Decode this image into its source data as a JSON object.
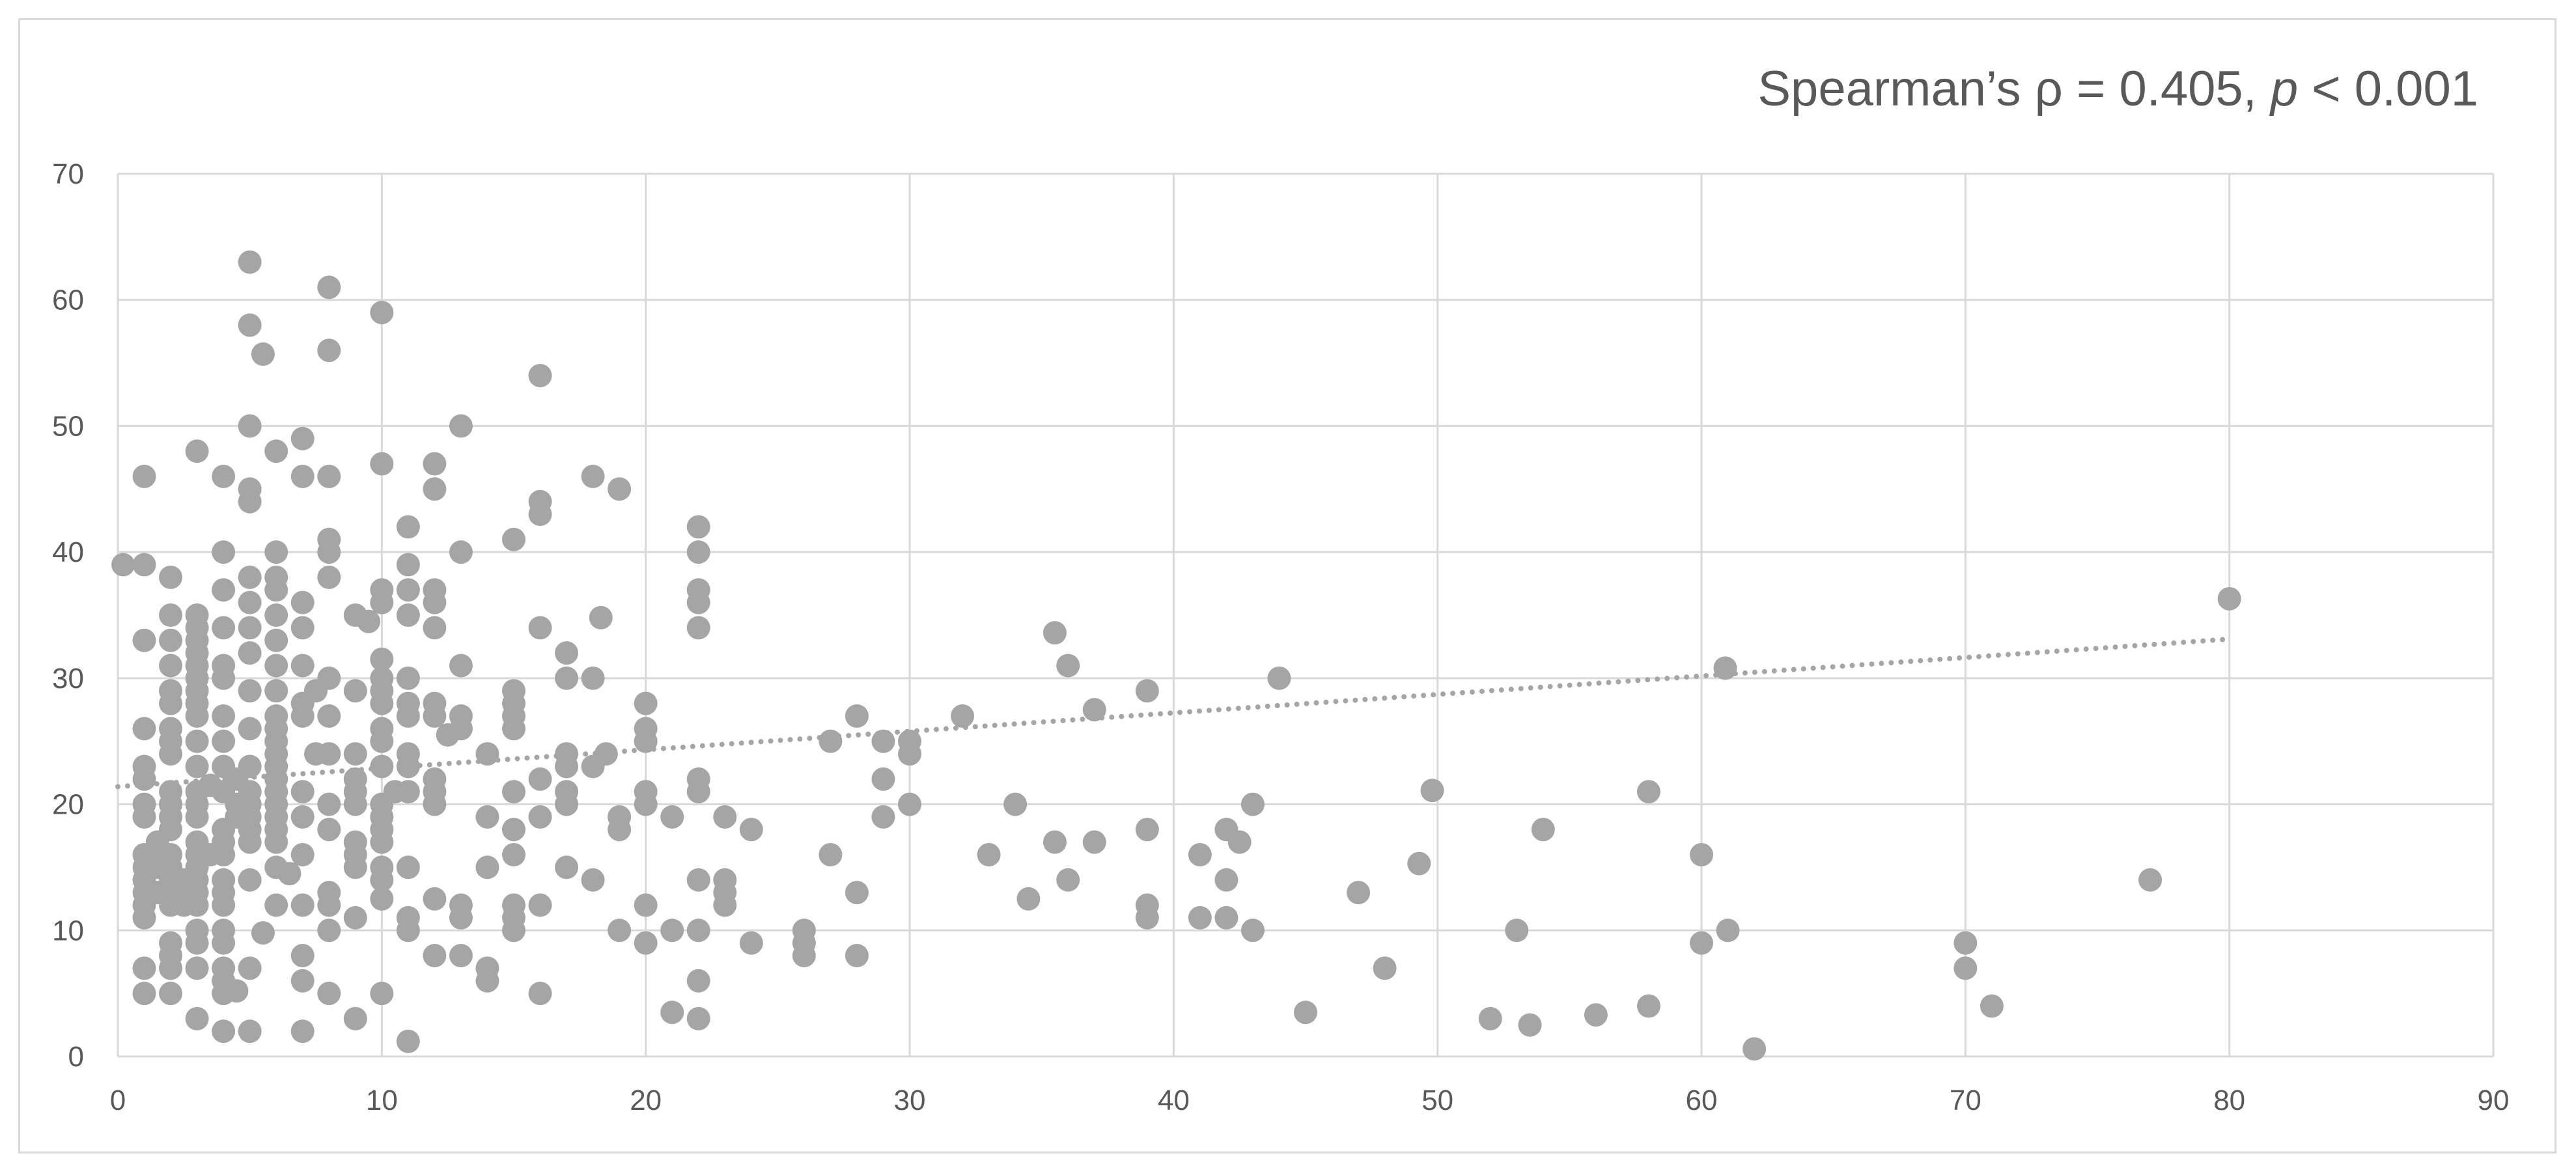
{
  "chart_data": {
    "type": "scatter",
    "title": "",
    "xlabel": "",
    "ylabel": "",
    "xlim": [
      0,
      90
    ],
    "ylim": [
      0,
      70
    ],
    "x_ticks": [
      0,
      10,
      20,
      30,
      40,
      50,
      60,
      70,
      80,
      90
    ],
    "y_ticks": [
      0,
      10,
      20,
      30,
      40,
      50,
      60,
      70
    ],
    "grid": true,
    "legend": "none",
    "annotation": {
      "prefix": "Spearman’s ρ = 0.405, ",
      "italic": "p",
      "suffix": " < 0.001"
    },
    "trendline": {
      "type": "linear",
      "style": "dotted",
      "x_start": 0,
      "y_start": 21.4,
      "x_end": 80,
      "y_end": 33.1
    },
    "colors": {
      "marker": "#a5a5a5",
      "trendline": "#a5a5a5",
      "grid": "#d9d9d9",
      "text": "#595959"
    },
    "points": [
      [
        0.2,
        39
      ],
      [
        1,
        39
      ],
      [
        1,
        46
      ],
      [
        1,
        33
      ],
      [
        1,
        26
      ],
      [
        1,
        23
      ],
      [
        1,
        22
      ],
      [
        1,
        20
      ],
      [
        1,
        19
      ],
      [
        1,
        16
      ],
      [
        1,
        15
      ],
      [
        1,
        14
      ],
      [
        1,
        13
      ],
      [
        1,
        12
      ],
      [
        1,
        11
      ],
      [
        1,
        7
      ],
      [
        1,
        5
      ],
      [
        1.5,
        17
      ],
      [
        1.5,
        16
      ],
      [
        1.5,
        15
      ],
      [
        1.5,
        13
      ],
      [
        2,
        38
      ],
      [
        2,
        35
      ],
      [
        2,
        33
      ],
      [
        2,
        31
      ],
      [
        2,
        29
      ],
      [
        2,
        28
      ],
      [
        2,
        26
      ],
      [
        2,
        25
      ],
      [
        2,
        24
      ],
      [
        2,
        21
      ],
      [
        2,
        20
      ],
      [
        2,
        19
      ],
      [
        2,
        18
      ],
      [
        2,
        16
      ],
      [
        2,
        15
      ],
      [
        2,
        14
      ],
      [
        2,
        13
      ],
      [
        2,
        12
      ],
      [
        2,
        9
      ],
      [
        2,
        8
      ],
      [
        2,
        7
      ],
      [
        2,
        5
      ],
      [
        2.5,
        14
      ],
      [
        2.5,
        13
      ],
      [
        2.5,
        12
      ],
      [
        3,
        48
      ],
      [
        3,
        35
      ],
      [
        3,
        34
      ],
      [
        3,
        33
      ],
      [
        3,
        32
      ],
      [
        3,
        31
      ],
      [
        3,
        30
      ],
      [
        3,
        29
      ],
      [
        3,
        28
      ],
      [
        3,
        27
      ],
      [
        3,
        25
      ],
      [
        3,
        23
      ],
      [
        3,
        21
      ],
      [
        3,
        20
      ],
      [
        3,
        19
      ],
      [
        3,
        17
      ],
      [
        3,
        16
      ],
      [
        3,
        15
      ],
      [
        3,
        14
      ],
      [
        3,
        13
      ],
      [
        3,
        12
      ],
      [
        3,
        10
      ],
      [
        3,
        9
      ],
      [
        3,
        7
      ],
      [
        3,
        3
      ],
      [
        3.5,
        21.5
      ],
      [
        3.5,
        16
      ],
      [
        4,
        46
      ],
      [
        4,
        40
      ],
      [
        4,
        37
      ],
      [
        4,
        34
      ],
      [
        4,
        31
      ],
      [
        4,
        30
      ],
      [
        4,
        27
      ],
      [
        4,
        25
      ],
      [
        4,
        23
      ],
      [
        4,
        21
      ],
      [
        4,
        18
      ],
      [
        4,
        17
      ],
      [
        4,
        16
      ],
      [
        4,
        14
      ],
      [
        4,
        13
      ],
      [
        4,
        12
      ],
      [
        4,
        10
      ],
      [
        4,
        9
      ],
      [
        4,
        7
      ],
      [
        4,
        6
      ],
      [
        4,
        5
      ],
      [
        4,
        2
      ],
      [
        4.5,
        22
      ],
      [
        4.5,
        20
      ],
      [
        4.5,
        19
      ],
      [
        4.5,
        5.2
      ],
      [
        5,
        63
      ],
      [
        5,
        58
      ],
      [
        5,
        50
      ],
      [
        5,
        45
      ],
      [
        5,
        44
      ],
      [
        5,
        38
      ],
      [
        5,
        36
      ],
      [
        5,
        34
      ],
      [
        5,
        32
      ],
      [
        5,
        29
      ],
      [
        5,
        26
      ],
      [
        5,
        23
      ],
      [
        5,
        21
      ],
      [
        5,
        20
      ],
      [
        5,
        19
      ],
      [
        5,
        18
      ],
      [
        5,
        17
      ],
      [
        5,
        14
      ],
      [
        5,
        7
      ],
      [
        5,
        2
      ],
      [
        5.5,
        55.7
      ],
      [
        5.5,
        9.8
      ],
      [
        6,
        48
      ],
      [
        6,
        40
      ],
      [
        6,
        38
      ],
      [
        6,
        37
      ],
      [
        6,
        35
      ],
      [
        6,
        33
      ],
      [
        6,
        31
      ],
      [
        6,
        29
      ],
      [
        6,
        27
      ],
      [
        6,
        26
      ],
      [
        6,
        25
      ],
      [
        6,
        24
      ],
      [
        6,
        23
      ],
      [
        6,
        22
      ],
      [
        6,
        21
      ],
      [
        6,
        20
      ],
      [
        6,
        19
      ],
      [
        6,
        18
      ],
      [
        6,
        17
      ],
      [
        6,
        15
      ],
      [
        6,
        12
      ],
      [
        6.5,
        14.5
      ],
      [
        7,
        49
      ],
      [
        7,
        46
      ],
      [
        7,
        36
      ],
      [
        7,
        34
      ],
      [
        7,
        31
      ],
      [
        7,
        28
      ],
      [
        7,
        27
      ],
      [
        7,
        21
      ],
      [
        7,
        19
      ],
      [
        7,
        16
      ],
      [
        7,
        12
      ],
      [
        7,
        8
      ],
      [
        7,
        6
      ],
      [
        7,
        2
      ],
      [
        7.5,
        29
      ],
      [
        7.5,
        24
      ],
      [
        8,
        61
      ],
      [
        8,
        56
      ],
      [
        8,
        46
      ],
      [
        8,
        41
      ],
      [
        8,
        40
      ],
      [
        8,
        38
      ],
      [
        8,
        30
      ],
      [
        8,
        27
      ],
      [
        8,
        24
      ],
      [
        8,
        20
      ],
      [
        8,
        18
      ],
      [
        8,
        13
      ],
      [
        8,
        12
      ],
      [
        8,
        10
      ],
      [
        8,
        5
      ],
      [
        9,
        35
      ],
      [
        9,
        29
      ],
      [
        9,
        24
      ],
      [
        9,
        22
      ],
      [
        9,
        21
      ],
      [
        9,
        20
      ],
      [
        9,
        17
      ],
      [
        9,
        16
      ],
      [
        9,
        15
      ],
      [
        9,
        11
      ],
      [
        9,
        3
      ],
      [
        9.5,
        34.5
      ],
      [
        10,
        59
      ],
      [
        10,
        47
      ],
      [
        10,
        37
      ],
      [
        10,
        36
      ],
      [
        10,
        31.5
      ],
      [
        10,
        30
      ],
      [
        10,
        29
      ],
      [
        10,
        28
      ],
      [
        10,
        26
      ],
      [
        10,
        25
      ],
      [
        10,
        23
      ],
      [
        10,
        20
      ],
      [
        10,
        19
      ],
      [
        10,
        18
      ],
      [
        10,
        17
      ],
      [
        10,
        15
      ],
      [
        10,
        14
      ],
      [
        10,
        12.5
      ],
      [
        10,
        5
      ],
      [
        10.5,
        21
      ],
      [
        11,
        42
      ],
      [
        11,
        39
      ],
      [
        11,
        37
      ],
      [
        11,
        35
      ],
      [
        11,
        30
      ],
      [
        11,
        28
      ],
      [
        11,
        27
      ],
      [
        11,
        24
      ],
      [
        11,
        23
      ],
      [
        11,
        21
      ],
      [
        11,
        15
      ],
      [
        11,
        11
      ],
      [
        11,
        10
      ],
      [
        11,
        1.2
      ],
      [
        12,
        47
      ],
      [
        12,
        45
      ],
      [
        12,
        37
      ],
      [
        12,
        36
      ],
      [
        12,
        34
      ],
      [
        12,
        28
      ],
      [
        12,
        27
      ],
      [
        12,
        22
      ],
      [
        12,
        21
      ],
      [
        12,
        20
      ],
      [
        12,
        12.5
      ],
      [
        12,
        8
      ],
      [
        12.5,
        25.5
      ],
      [
        13,
        50
      ],
      [
        13,
        40
      ],
      [
        13,
        31
      ],
      [
        13,
        27
      ],
      [
        13,
        26
      ],
      [
        13,
        12
      ],
      [
        13,
        11
      ],
      [
        13,
        8
      ],
      [
        14,
        24
      ],
      [
        14,
        19
      ],
      [
        14,
        15
      ],
      [
        14,
        7
      ],
      [
        14,
        6
      ],
      [
        15,
        41
      ],
      [
        15,
        29
      ],
      [
        15,
        28
      ],
      [
        15,
        27
      ],
      [
        15,
        26
      ],
      [
        15,
        21
      ],
      [
        15,
        18
      ],
      [
        15,
        16
      ],
      [
        15,
        12
      ],
      [
        15,
        11
      ],
      [
        15,
        10
      ],
      [
        16,
        54
      ],
      [
        16,
        44
      ],
      [
        16,
        43
      ],
      [
        16,
        34
      ],
      [
        16,
        22
      ],
      [
        16,
        19
      ],
      [
        16,
        12
      ],
      [
        16,
        5
      ],
      [
        17,
        32
      ],
      [
        17,
        30
      ],
      [
        17,
        24
      ],
      [
        17,
        23
      ],
      [
        17,
        21
      ],
      [
        17,
        20
      ],
      [
        17,
        15
      ],
      [
        18,
        46
      ],
      [
        18,
        30
      ],
      [
        18,
        23
      ],
      [
        18,
        14
      ],
      [
        18.3,
        34.8
      ],
      [
        18.5,
        24
      ],
      [
        19,
        45
      ],
      [
        19,
        19
      ],
      [
        19,
        18
      ],
      [
        19,
        10
      ],
      [
        20,
        28
      ],
      [
        20,
        26
      ],
      [
        20,
        25
      ],
      [
        20,
        21
      ],
      [
        20,
        20
      ],
      [
        20,
        12
      ],
      [
        20,
        9
      ],
      [
        21,
        19
      ],
      [
        21,
        10
      ],
      [
        21,
        3.5
      ],
      [
        22,
        42
      ],
      [
        22,
        40
      ],
      [
        22,
        37
      ],
      [
        22,
        36
      ],
      [
        22,
        34
      ],
      [
        22,
        22
      ],
      [
        22,
        21
      ],
      [
        22,
        14
      ],
      [
        22,
        10
      ],
      [
        22,
        6
      ],
      [
        22,
        3
      ],
      [
        23,
        19
      ],
      [
        23,
        14
      ],
      [
        23,
        13
      ],
      [
        23,
        12
      ],
      [
        24,
        18
      ],
      [
        24,
        9
      ],
      [
        26,
        10
      ],
      [
        26,
        9
      ],
      [
        26,
        8
      ],
      [
        27,
        25
      ],
      [
        27,
        16
      ],
      [
        28,
        27
      ],
      [
        28,
        13
      ],
      [
        28,
        8
      ],
      [
        29,
        25
      ],
      [
        29,
        22
      ],
      [
        29,
        19
      ],
      [
        30,
        25
      ],
      [
        30,
        24
      ],
      [
        30,
        20
      ],
      [
        32,
        27
      ],
      [
        33,
        16
      ],
      [
        34,
        20
      ],
      [
        34.5,
        12.5
      ],
      [
        35.5,
        33.6
      ],
      [
        35.5,
        17
      ],
      [
        36,
        31
      ],
      [
        36,
        14
      ],
      [
        37,
        27.5
      ],
      [
        37,
        17
      ],
      [
        39,
        29
      ],
      [
        39,
        18
      ],
      [
        39,
        12
      ],
      [
        39,
        11
      ],
      [
        41,
        16
      ],
      [
        41,
        11
      ],
      [
        42,
        18
      ],
      [
        42,
        14
      ],
      [
        42,
        11
      ],
      [
        42.5,
        17
      ],
      [
        43,
        20
      ],
      [
        43,
        10
      ],
      [
        44,
        30
      ],
      [
        45,
        3.5
      ],
      [
        47,
        13
      ],
      [
        48,
        7
      ],
      [
        49.3,
        15.3
      ],
      [
        49.8,
        21.1
      ],
      [
        52,
        3
      ],
      [
        53,
        10
      ],
      [
        53.5,
        2.5
      ],
      [
        54,
        18
      ],
      [
        56,
        3.3
      ],
      [
        58,
        21
      ],
      [
        58,
        4
      ],
      [
        60,
        16
      ],
      [
        60,
        9
      ],
      [
        60.9,
        30.8
      ],
      [
        61,
        10
      ],
      [
        62,
        0.6
      ],
      [
        70,
        9
      ],
      [
        70,
        7
      ],
      [
        71,
        4
      ],
      [
        77,
        14
      ],
      [
        80,
        36.3
      ]
    ]
  }
}
